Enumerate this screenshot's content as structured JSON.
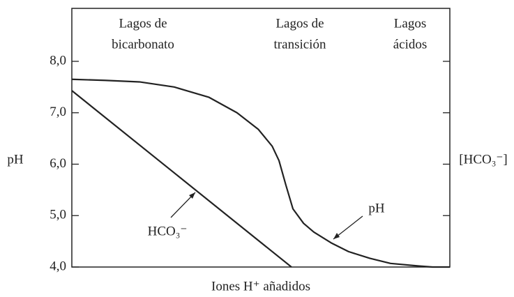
{
  "chart_data": {
    "type": "line",
    "y_label": "pH",
    "y2_label": "[HCO₃⁻]",
    "x_label": "Iones H⁺ añadidos",
    "regions": [
      [
        "Lagos de",
        "bicarbonato"
      ],
      [
        "Lagos de",
        "transición"
      ],
      [
        "Lagos",
        "ácidos"
      ]
    ],
    "xlim": [
      0,
      100
    ],
    "ylim": [
      4,
      9.03
    ],
    "y2lim": [
      4,
      9.03
    ],
    "yticks": [
      {
        "value": 8,
        "label": "8,0"
      },
      {
        "value": 7,
        "label": "7,0"
      },
      {
        "value": 6,
        "label": "6,0"
      },
      {
        "value": 5,
        "label": "5,0"
      },
      {
        "value": 4,
        "label": "4,0"
      }
    ],
    "series": [
      {
        "name": "pH",
        "color": "#222222",
        "x": [
          0,
          8.7,
          17.9,
          27.1,
          36.3,
          43.7,
          49.3,
          53,
          54.8,
          56.6,
          58.5,
          61.3,
          64,
          68.6,
          73.2,
          78.8,
          84.3,
          91.7,
          95.4,
          100
        ],
        "values": [
          7.65,
          7.63,
          7.6,
          7.5,
          7.3,
          7.0,
          6.68,
          6.35,
          6.07,
          5.6,
          5.13,
          4.85,
          4.68,
          4.47,
          4.3,
          4.17,
          4.07,
          4.02,
          4.0,
          4.0
        ]
      },
      {
        "name": "HCO₃⁻",
        "color": "#222222",
        "axis": "y2",
        "x": [
          0,
          58.1
        ],
        "values": [
          7.43,
          4.0
        ]
      }
    ]
  }
}
